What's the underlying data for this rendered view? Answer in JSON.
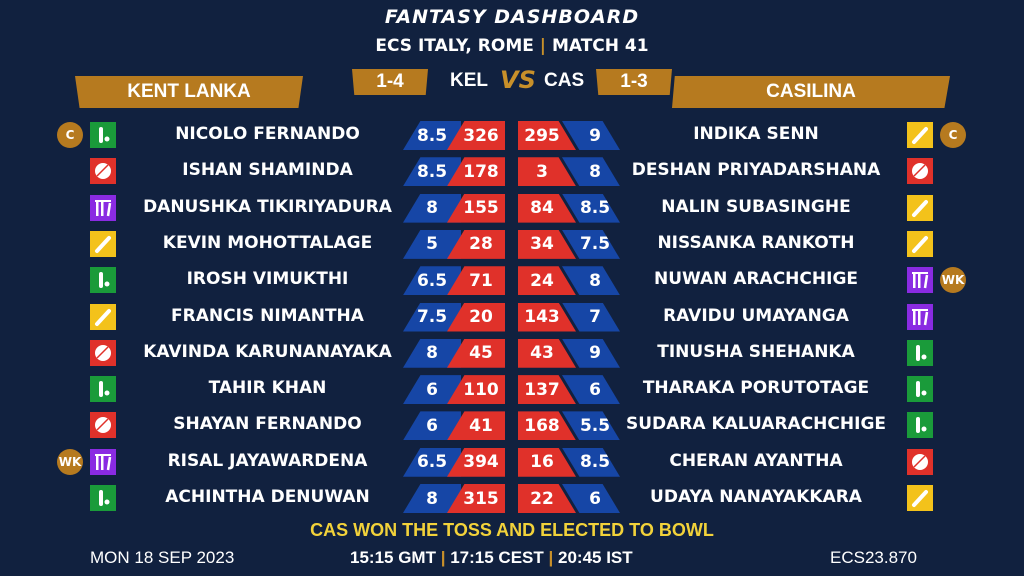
{
  "header": {
    "title": "FANTASY DASHBOARD",
    "league": "ECS ITALY, ROME",
    "match": "MATCH 41"
  },
  "teams": {
    "left": {
      "name": "KENT LANKA",
      "abbr": "KEL",
      "record": "1-4"
    },
    "right": {
      "name": "CASILINA",
      "abbr": "CAS",
      "record": "1-3"
    },
    "vs": "VS"
  },
  "colors": {
    "background": "#11213f",
    "gold": "#b67a1f",
    "credit": "#1646a6",
    "points": "#e0312a",
    "batter": "#f3c21b",
    "bowler": "#e0312a",
    "allrounder": "#1a9b3a",
    "wicketkeeper": "#8a2be2"
  },
  "left_players": [
    {
      "name": "NICOLO FERNANDO",
      "role": "allrounder",
      "badge": "C",
      "credit": "8.5",
      "points": "326"
    },
    {
      "name": "ISHAN SHAMINDA",
      "role": "bowler",
      "badge": "",
      "credit": "8.5",
      "points": "178"
    },
    {
      "name": "DANUSHKA TIKIRIYADURA",
      "role": "wicketkeeper",
      "badge": "",
      "credit": "8",
      "points": "155"
    },
    {
      "name": "KEVIN MOHOTTALAGE",
      "role": "batter",
      "badge": "",
      "credit": "5",
      "points": "28"
    },
    {
      "name": "IROSH VIMUKTHI",
      "role": "allrounder",
      "badge": "",
      "credit": "6.5",
      "points": "71"
    },
    {
      "name": "FRANCIS NIMANTHA",
      "role": "batter",
      "badge": "",
      "credit": "7.5",
      "points": "20"
    },
    {
      "name": "KAVINDA KARUNANAYAKA",
      "role": "bowler",
      "badge": "",
      "credit": "8",
      "points": "45"
    },
    {
      "name": "TAHIR KHAN",
      "role": "allrounder",
      "badge": "",
      "credit": "6",
      "points": "110"
    },
    {
      "name": "SHAYAN FERNANDO",
      "role": "bowler",
      "badge": "",
      "credit": "6",
      "points": "41"
    },
    {
      "name": "RISAL JAYAWARDENA",
      "role": "wicketkeeper",
      "badge": "WK",
      "credit": "6.5",
      "points": "394"
    },
    {
      "name": "ACHINTHA DENUWAN",
      "role": "allrounder",
      "badge": "",
      "credit": "8",
      "points": "315"
    }
  ],
  "right_players": [
    {
      "name": "INDIKA SENN",
      "role": "batter",
      "badge": "C",
      "credit": "9",
      "points": "295"
    },
    {
      "name": "DESHAN PRIYADARSHANA",
      "role": "bowler",
      "badge": "",
      "credit": "8",
      "points": "3"
    },
    {
      "name": "NALIN SUBASINGHE",
      "role": "batter",
      "badge": "",
      "credit": "8.5",
      "points": "84"
    },
    {
      "name": "NISSANKA RANKOTH",
      "role": "batter",
      "badge": "",
      "credit": "7.5",
      "points": "34"
    },
    {
      "name": "NUWAN ARACHCHIGE",
      "role": "wicketkeeper",
      "badge": "WK",
      "credit": "8",
      "points": "24"
    },
    {
      "name": "RAVIDU UMAYANGA",
      "role": "wicketkeeper",
      "badge": "",
      "credit": "7",
      "points": "143"
    },
    {
      "name": "TINUSHA SHEHANKA",
      "role": "allrounder",
      "badge": "",
      "credit": "9",
      "points": "43"
    },
    {
      "name": "THARAKA PORUTOTAGE",
      "role": "allrounder",
      "badge": "",
      "credit": "6",
      "points": "137"
    },
    {
      "name": "SUDARA KALUARACHCHIGE",
      "role": "allrounder",
      "badge": "",
      "credit": "5.5",
      "points": "168"
    },
    {
      "name": "CHERAN AYANTHA",
      "role": "bowler",
      "badge": "",
      "credit": "8.5",
      "points": "16"
    },
    {
      "name": "UDAYA NANAYAKKARA",
      "role": "batter",
      "badge": "",
      "credit": "6",
      "points": "22"
    }
  ],
  "footer": {
    "toss": "CAS WON THE TOSS AND ELECTED TO BOWL",
    "date": "MON 18 SEP 2023",
    "time_gmt": "15:15 GMT",
    "time_cest": "17:15 CEST",
    "time_ist": "20:45 IST",
    "code": "ECS23.870"
  }
}
